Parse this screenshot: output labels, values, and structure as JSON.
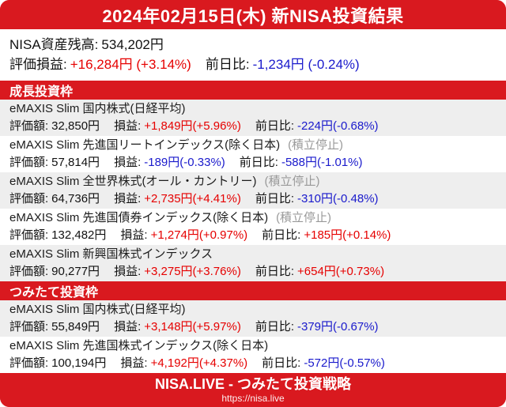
{
  "header": {
    "title": "2024年02月15日(木) 新NISA投資結果"
  },
  "summary": {
    "balance_label": "NISA資産残高:",
    "balance_value": "534,202円",
    "pl_label": "評価損益:",
    "pl_value": "+16,284円 (+3.14%)",
    "dod_label": "前日比:",
    "dod_value": "-1,234円 (-0.24%)"
  },
  "labels": {
    "value": "評価額:",
    "pl": "損益:",
    "dod": "前日比:"
  },
  "sections": [
    {
      "title": "成長投資枠",
      "funds": [
        {
          "name": "eMAXIS Slim 国内株式(日経平均)",
          "suspended": "",
          "value": "32,850円",
          "pl": "+1,849円(+5.96%)",
          "dod": "-224円(-0.68%)"
        },
        {
          "name": "eMAXIS Slim 先進国リートインデックス(除く日本)",
          "suspended": "(積立停止)",
          "value": "57,814円",
          "pl": "-189円(-0.33%)",
          "dod": "-588円(-1.01%)"
        },
        {
          "name": "eMAXIS Slim 全世界株式(オール・カントリー)",
          "suspended": "(積立停止)",
          "value": "64,736円",
          "pl": "+2,735円(+4.41%)",
          "dod": "-310円(-0.48%)"
        },
        {
          "name": "eMAXIS Slim 先進国債券インデックス(除く日本)",
          "suspended": "(積立停止)",
          "value": "132,482円",
          "pl": "+1,274円(+0.97%)",
          "dod": "+185円(+0.14%)"
        },
        {
          "name": "eMAXIS Slim 新興国株式インデックス",
          "suspended": "",
          "value": "90,277円",
          "pl": "+3,275円(+3.76%)",
          "dod": "+654円(+0.73%)"
        }
      ]
    },
    {
      "title": "つみたて投資枠",
      "funds": [
        {
          "name": "eMAXIS Slim 国内株式(日経平均)",
          "suspended": "",
          "value": "55,849円",
          "pl": "+3,148円(+5.97%)",
          "dod": "-379円(-0.67%)"
        },
        {
          "name": "eMAXIS Slim 先進国株式インデックス(除く日本)",
          "suspended": "",
          "value": "100,194円",
          "pl": "+4,192円(+4.37%)",
          "dod": "-572円(-0.57%)"
        }
      ]
    }
  ],
  "footer": {
    "title": "NISA.LIVE - つみたて投資戦略",
    "url": "https://nisa.live"
  },
  "colors": {
    "brand_red": "#d9191f",
    "positive_text": "#e60000",
    "negative_text": "#1a1acc",
    "suspended_gray": "#999999",
    "row_alt_bg": "#eeeeee"
  }
}
